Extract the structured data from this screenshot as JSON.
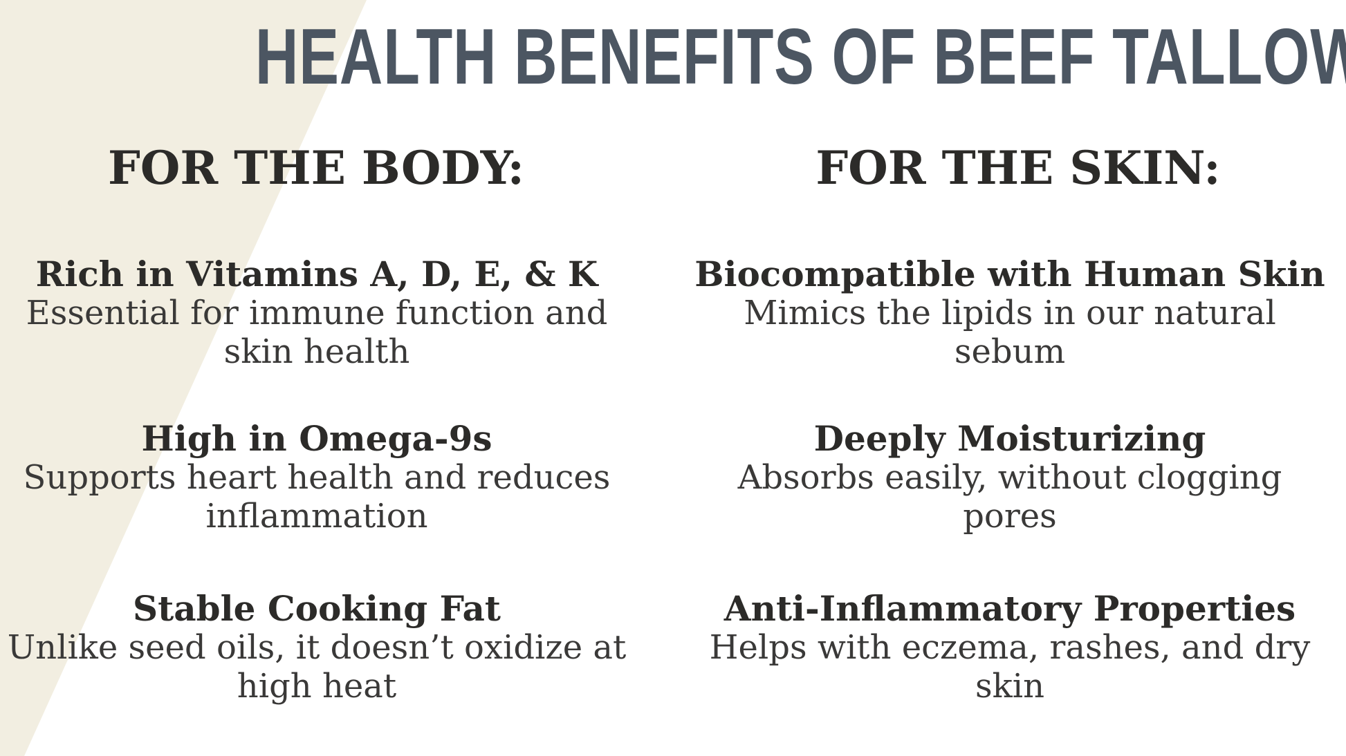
{
  "title": "HEALTH BENEFITS OF BEEF TALLOW",
  "colors": {
    "background": "#ffffff",
    "accent_triangle": "#f2eee1",
    "title_text": "#4c5662",
    "heading_text": "#2c2b29",
    "body_text": "#3a3938"
  },
  "columns": [
    {
      "header": "FOR THE BODY:",
      "items": [
        {
          "title": "Rich in Vitamins A, D, E, & K",
          "description": "Essential for immune function and\nskin health"
        },
        {
          "title": "High in Omega-9s",
          "description": "Supports heart health and reduces\ninflammation"
        },
        {
          "title": "Stable Cooking Fat",
          "description": "Unlike seed oils, it doesn’t oxidize at\nhigh heat"
        }
      ]
    },
    {
      "header": "FOR THE SKIN:",
      "items": [
        {
          "title": "Biocompatible with Human Skin",
          "description": "Mimics the lipids in our natural\nsebum"
        },
        {
          "title": "Deeply Moisturizing",
          "description": "Absorbs easily, without clogging\npores"
        },
        {
          "title": "Anti-Inflammatory Properties",
          "description": "Helps with eczema, rashes, and dry\nskin"
        }
      ]
    }
  ]
}
